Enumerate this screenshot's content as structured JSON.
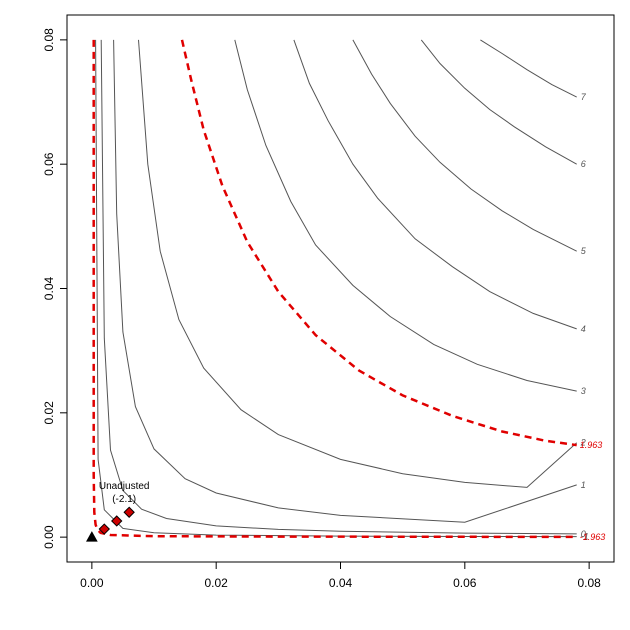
{
  "chart_data": {
    "type": "line",
    "title": "",
    "xlabel": "",
    "ylabel": "",
    "xlim": [
      -0.004,
      0.084
    ],
    "ylim": [
      -0.004,
      0.084
    ],
    "x_ticks": [
      0.0,
      0.02,
      0.04,
      0.06,
      0.08
    ],
    "x_tick_labels": [
      "0.00",
      "0.02",
      "0.04",
      "0.06",
      "0.08"
    ],
    "y_ticks": [
      0.0,
      0.02,
      0.04,
      0.06,
      0.08
    ],
    "y_tick_labels": [
      "0.00",
      "0.02",
      "0.04",
      "0.06",
      "0.08"
    ],
    "grid": false,
    "colors": {
      "contour": "#555555",
      "threshold": "#e00000",
      "marker_fill": "#cc0000",
      "axis": "#000000"
    },
    "contours": [
      {
        "label": "-1",
        "x": [
          0.0006,
          0.001,
          0.002,
          0.005,
          0.01,
          0.02,
          0.04,
          0.06,
          0.078
        ],
        "y": [
          0.08,
          0.0125,
          0.0044,
          0.0014,
          0.0007,
          0.00032,
          0.00016,
          0.00011,
          9e-05
        ]
      },
      {
        "label": "0",
        "x": [
          0.0015,
          0.002,
          0.003,
          0.005,
          0.008,
          0.012,
          0.02,
          0.03,
          0.04,
          0.06,
          0.078
        ],
        "y": [
          0.08,
          0.032,
          0.014,
          0.0075,
          0.0045,
          0.003,
          0.0018,
          0.00125,
          0.00095,
          0.00065,
          0.00052
        ]
      },
      {
        "label": "1",
        "x": [
          0.0035,
          0.004,
          0.005,
          0.007,
          0.01,
          0.015,
          0.02,
          0.03,
          0.04,
          0.06,
          0.078
        ],
        "y": [
          0.08,
          0.052,
          0.033,
          0.021,
          0.0142,
          0.0094,
          0.0071,
          0.0047,
          0.0035,
          0.0024,
          0.0084
        ]
      },
      {
        "label": "2",
        "x": [
          0.0075,
          0.009,
          0.011,
          0.014,
          0.018,
          0.024,
          0.03,
          0.04,
          0.05,
          0.06,
          0.07,
          0.078
        ],
        "y": [
          0.08,
          0.06,
          0.046,
          0.035,
          0.0272,
          0.0205,
          0.0165,
          0.0125,
          0.0102,
          0.0088,
          0.008,
          0.0152
        ]
      },
      {
        "label": "3",
        "x": [
          0.023,
          0.025,
          0.028,
          0.032,
          0.036,
          0.042,
          0.048,
          0.055,
          0.062,
          0.07,
          0.078
        ],
        "y": [
          0.08,
          0.072,
          0.063,
          0.054,
          0.047,
          0.0405,
          0.0355,
          0.031,
          0.0278,
          0.0252,
          0.0235
        ]
      },
      {
        "label": "4",
        "x": [
          0.0325,
          0.035,
          0.038,
          0.042,
          0.046,
          0.052,
          0.058,
          0.064,
          0.071,
          0.078
        ],
        "y": [
          0.08,
          0.073,
          0.067,
          0.06,
          0.0545,
          0.048,
          0.0435,
          0.0395,
          0.036,
          0.0335
        ]
      },
      {
        "label": "5",
        "x": [
          0.042,
          0.045,
          0.048,
          0.052,
          0.056,
          0.061,
          0.066,
          0.071,
          0.078
        ],
        "y": [
          0.08,
          0.0745,
          0.0698,
          0.0645,
          0.0603,
          0.056,
          0.0525,
          0.0495,
          0.046
        ]
      },
      {
        "label": "6",
        "x": [
          0.053,
          0.056,
          0.06,
          0.064,
          0.068,
          0.073,
          0.078
        ],
        "y": [
          0.08,
          0.0762,
          0.0722,
          0.0688,
          0.066,
          0.0628,
          0.06
        ]
      },
      {
        "label": "7",
        "x": [
          0.0625,
          0.066,
          0.07,
          0.074,
          0.078
        ],
        "y": [
          0.08,
          0.0778,
          0.0752,
          0.0728,
          0.0708
        ]
      }
    ],
    "threshold_contours": [
      {
        "label": "-1.963",
        "x": [
          0.0003,
          0.0003,
          0.0004,
          0.0006,
          0.0009,
          0.0014,
          0.003,
          0.01,
          0.03,
          0.06,
          0.078
        ],
        "y": [
          0.08,
          0.01,
          0.004,
          0.002,
          0.0012,
          0.0007,
          0.00035,
          0.00015,
          8e-05,
          5e-05,
          4e-05
        ]
      },
      {
        "label": "1.963",
        "x": [
          0.0145,
          0.016,
          0.018,
          0.021,
          0.025,
          0.03,
          0.036,
          0.043,
          0.05,
          0.058,
          0.066,
          0.073,
          0.078
        ],
        "y": [
          0.08,
          0.0735,
          0.0655,
          0.0565,
          0.0475,
          0.0395,
          0.0325,
          0.0268,
          0.0228,
          0.0195,
          0.017,
          0.0155,
          0.0148
        ]
      }
    ],
    "points": [
      {
        "x": 0.0,
        "y": 0.0,
        "shape": "triangle",
        "fill": "#000000"
      },
      {
        "x": 0.002,
        "y": 0.0013,
        "shape": "diamond",
        "fill": "#cc0000"
      },
      {
        "x": 0.004,
        "y": 0.0026,
        "shape": "diamond",
        "fill": "#cc0000"
      },
      {
        "x": 0.006,
        "y": 0.004,
        "shape": "diamond",
        "fill": "#cc0000"
      }
    ],
    "annotation": {
      "line1": "Unadjusted",
      "line2": "(-2.1)",
      "x": 0.0052,
      "y": 0.0063
    }
  }
}
